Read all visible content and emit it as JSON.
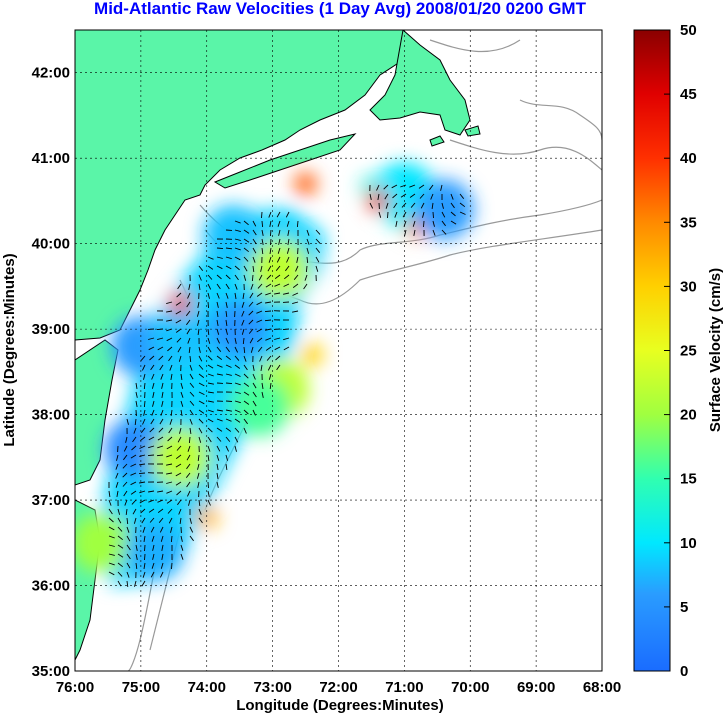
{
  "title": "Mid-Atlantic Raw Velocities (1 Day Avg) 2008/01/20 0200 GMT",
  "x_axis": {
    "label": "Longitude (Degrees:Minutes)",
    "ticks": [
      "76:00",
      "75:00",
      "74:00",
      "73:00",
      "72:00",
      "71:00",
      "70:00",
      "69:00",
      "68:00"
    ]
  },
  "y_axis": {
    "label": "Latitude (Degrees:Minutes)",
    "ticks": [
      "35:00",
      "36:00",
      "37:00",
      "38:00",
      "39:00",
      "40:00",
      "41:00",
      "42:00"
    ]
  },
  "colorbar": {
    "label": "Surface Velocity (cm/s)",
    "ticks": [
      "0",
      "5",
      "10",
      "15",
      "20",
      "25",
      "30",
      "35",
      "40",
      "45",
      "50"
    ],
    "min": 0,
    "max": 50
  },
  "map": {
    "lon_range": [
      -76,
      -68
    ],
    "lat_range": [
      35,
      42.5
    ],
    "land_color": "#5af5a8",
    "coast_color": "#000000",
    "bathymetry_color": "#999999",
    "grid": true
  },
  "chart_data": {
    "type": "heatmap",
    "title": "Mid-Atlantic Raw Velocities (1 Day Avg) 2008/01/20 0200 GMT",
    "xlabel": "Longitude (Degrees:Minutes)",
    "ylabel": "Latitude (Degrees:Minutes)",
    "xlim": [
      -76,
      -68
    ],
    "ylim": [
      35,
      42.5
    ],
    "zlabel": "Surface Velocity (cm/s)",
    "zlim": [
      0,
      50
    ],
    "grid": true,
    "regions": [
      {
        "lon": -75.0,
        "lat": 38.8,
        "speed": 6
      },
      {
        "lon": -74.4,
        "lat": 38.9,
        "speed": 8
      },
      {
        "lon": -73.5,
        "lat": 39.0,
        "speed": 5
      },
      {
        "lon": -72.9,
        "lat": 39.7,
        "speed": 22
      },
      {
        "lon": -73.6,
        "lat": 40.1,
        "speed": 8
      },
      {
        "lon": -74.4,
        "lat": 39.3,
        "speed": 40
      },
      {
        "lon": -72.9,
        "lat": 38.3,
        "speed": 22
      },
      {
        "lon": -73.2,
        "lat": 38.1,
        "speed": 16
      },
      {
        "lon": -75.1,
        "lat": 37.6,
        "speed": 4
      },
      {
        "lon": -74.4,
        "lat": 37.5,
        "speed": 22
      },
      {
        "lon": -74.0,
        "lat": 36.8,
        "speed": 32
      },
      {
        "lon": -75.6,
        "lat": 36.5,
        "speed": 20
      },
      {
        "lon": -74.8,
        "lat": 36.4,
        "speed": 7
      },
      {
        "lon": -71.0,
        "lat": 40.6,
        "speed": 10
      },
      {
        "lon": -71.4,
        "lat": 40.5,
        "speed": 42
      },
      {
        "lon": -70.8,
        "lat": 40.2,
        "speed": 36
      },
      {
        "lon": -70.4,
        "lat": 40.4,
        "speed": 6
      },
      {
        "lon": -72.5,
        "lat": 40.7,
        "speed": 38
      },
      {
        "lon": -72.4,
        "lat": 38.7,
        "speed": 30
      }
    ]
  }
}
